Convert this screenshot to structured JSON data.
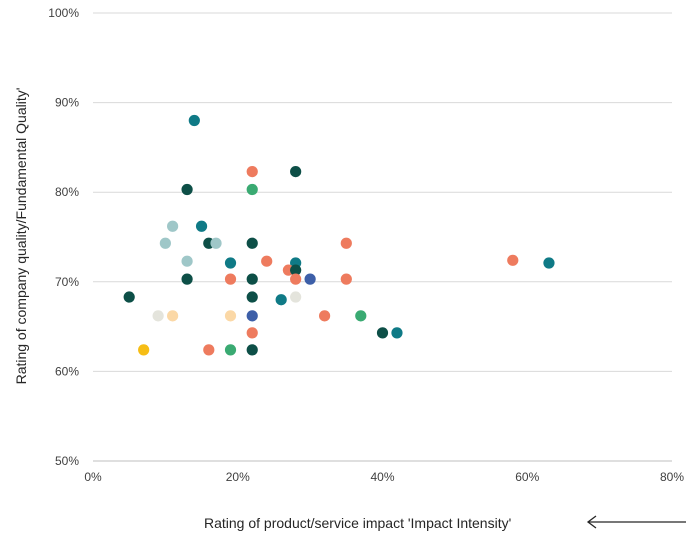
{
  "chart_data": {
    "type": "scatter",
    "xlabel": "Rating of product/service impact 'Impact Intensity'",
    "ylabel": "Rating of company quality/Fundamental Quality'",
    "xlim": [
      0,
      80
    ],
    "ylim": [
      50,
      100
    ],
    "x_ticks": [
      0,
      20,
      40,
      60,
      80
    ],
    "y_ticks": [
      50,
      60,
      70,
      80,
      90,
      100
    ],
    "x_tick_labels": [
      "0%",
      "20%",
      "40%",
      "60%",
      "80%"
    ],
    "y_tick_labels": [
      "50%",
      "60%",
      "70%",
      "80%",
      "90%",
      "100%"
    ],
    "grid": "horizontal",
    "legend": "none",
    "arrow": "left-pointing arrow beside x-axis title",
    "colors": {
      "teal": "#0f7a86",
      "dark_green": "#0d4f47",
      "coral": "#ee7b5e",
      "light_teal": "#9fc7c8",
      "green": "#3aaa72",
      "light_gray": "#e4e4dc",
      "peach": "#fbd8a6",
      "yellow": "#f6bd15",
      "blue": "#3d5fa8"
    },
    "points": [
      {
        "x": 14,
        "y": 88,
        "color": "teal"
      },
      {
        "x": 22,
        "y": 82.3,
        "color": "coral"
      },
      {
        "x": 28,
        "y": 82.3,
        "color": "dark_green"
      },
      {
        "x": 13,
        "y": 80.3,
        "color": "dark_green"
      },
      {
        "x": 22,
        "y": 80.3,
        "color": "green"
      },
      {
        "x": 11,
        "y": 76.2,
        "color": "light_teal"
      },
      {
        "x": 15,
        "y": 76.2,
        "color": "teal"
      },
      {
        "x": 10,
        "y": 74.3,
        "color": "light_teal"
      },
      {
        "x": 16,
        "y": 74.3,
        "color": "dark_green"
      },
      {
        "x": 17,
        "y": 74.3,
        "color": "light_teal"
      },
      {
        "x": 22,
        "y": 74.3,
        "color": "dark_green"
      },
      {
        "x": 35,
        "y": 74.3,
        "color": "coral"
      },
      {
        "x": 13,
        "y": 72.3,
        "color": "light_teal"
      },
      {
        "x": 19,
        "y": 72.1,
        "color": "teal"
      },
      {
        "x": 24,
        "y": 72.3,
        "color": "coral"
      },
      {
        "x": 28,
        "y": 72.1,
        "color": "teal"
      },
      {
        "x": 27,
        "y": 71.3,
        "color": "coral"
      },
      {
        "x": 28,
        "y": 71.3,
        "color": "dark_green"
      },
      {
        "x": 58,
        "y": 72.4,
        "color": "coral"
      },
      {
        "x": 63,
        "y": 72.1,
        "color": "teal"
      },
      {
        "x": 13,
        "y": 70.3,
        "color": "dark_green"
      },
      {
        "x": 19,
        "y": 70.3,
        "color": "coral"
      },
      {
        "x": 22,
        "y": 70.3,
        "color": "dark_green"
      },
      {
        "x": 28,
        "y": 70.3,
        "color": "coral"
      },
      {
        "x": 30,
        "y": 70.3,
        "color": "blue"
      },
      {
        "x": 35,
        "y": 70.3,
        "color": "coral"
      },
      {
        "x": 5,
        "y": 68.3,
        "color": "dark_green"
      },
      {
        "x": 22,
        "y": 68.3,
        "color": "dark_green"
      },
      {
        "x": 26,
        "y": 68.0,
        "color": "teal"
      },
      {
        "x": 28,
        "y": 68.3,
        "color": "light_gray"
      },
      {
        "x": 9,
        "y": 66.2,
        "color": "light_gray"
      },
      {
        "x": 11,
        "y": 66.2,
        "color": "peach"
      },
      {
        "x": 19,
        "y": 66.2,
        "color": "peach"
      },
      {
        "x": 22,
        "y": 66.2,
        "color": "blue"
      },
      {
        "x": 32,
        "y": 66.2,
        "color": "coral"
      },
      {
        "x": 37,
        "y": 66.2,
        "color": "green"
      },
      {
        "x": 22,
        "y": 64.3,
        "color": "coral"
      },
      {
        "x": 40,
        "y": 64.3,
        "color": "dark_green"
      },
      {
        "x": 42,
        "y": 64.3,
        "color": "teal"
      },
      {
        "x": 7,
        "y": 62.4,
        "color": "yellow"
      },
      {
        "x": 16,
        "y": 62.4,
        "color": "coral"
      },
      {
        "x": 19,
        "y": 62.4,
        "color": "green"
      },
      {
        "x": 22,
        "y": 62.4,
        "color": "dark_green"
      }
    ]
  }
}
